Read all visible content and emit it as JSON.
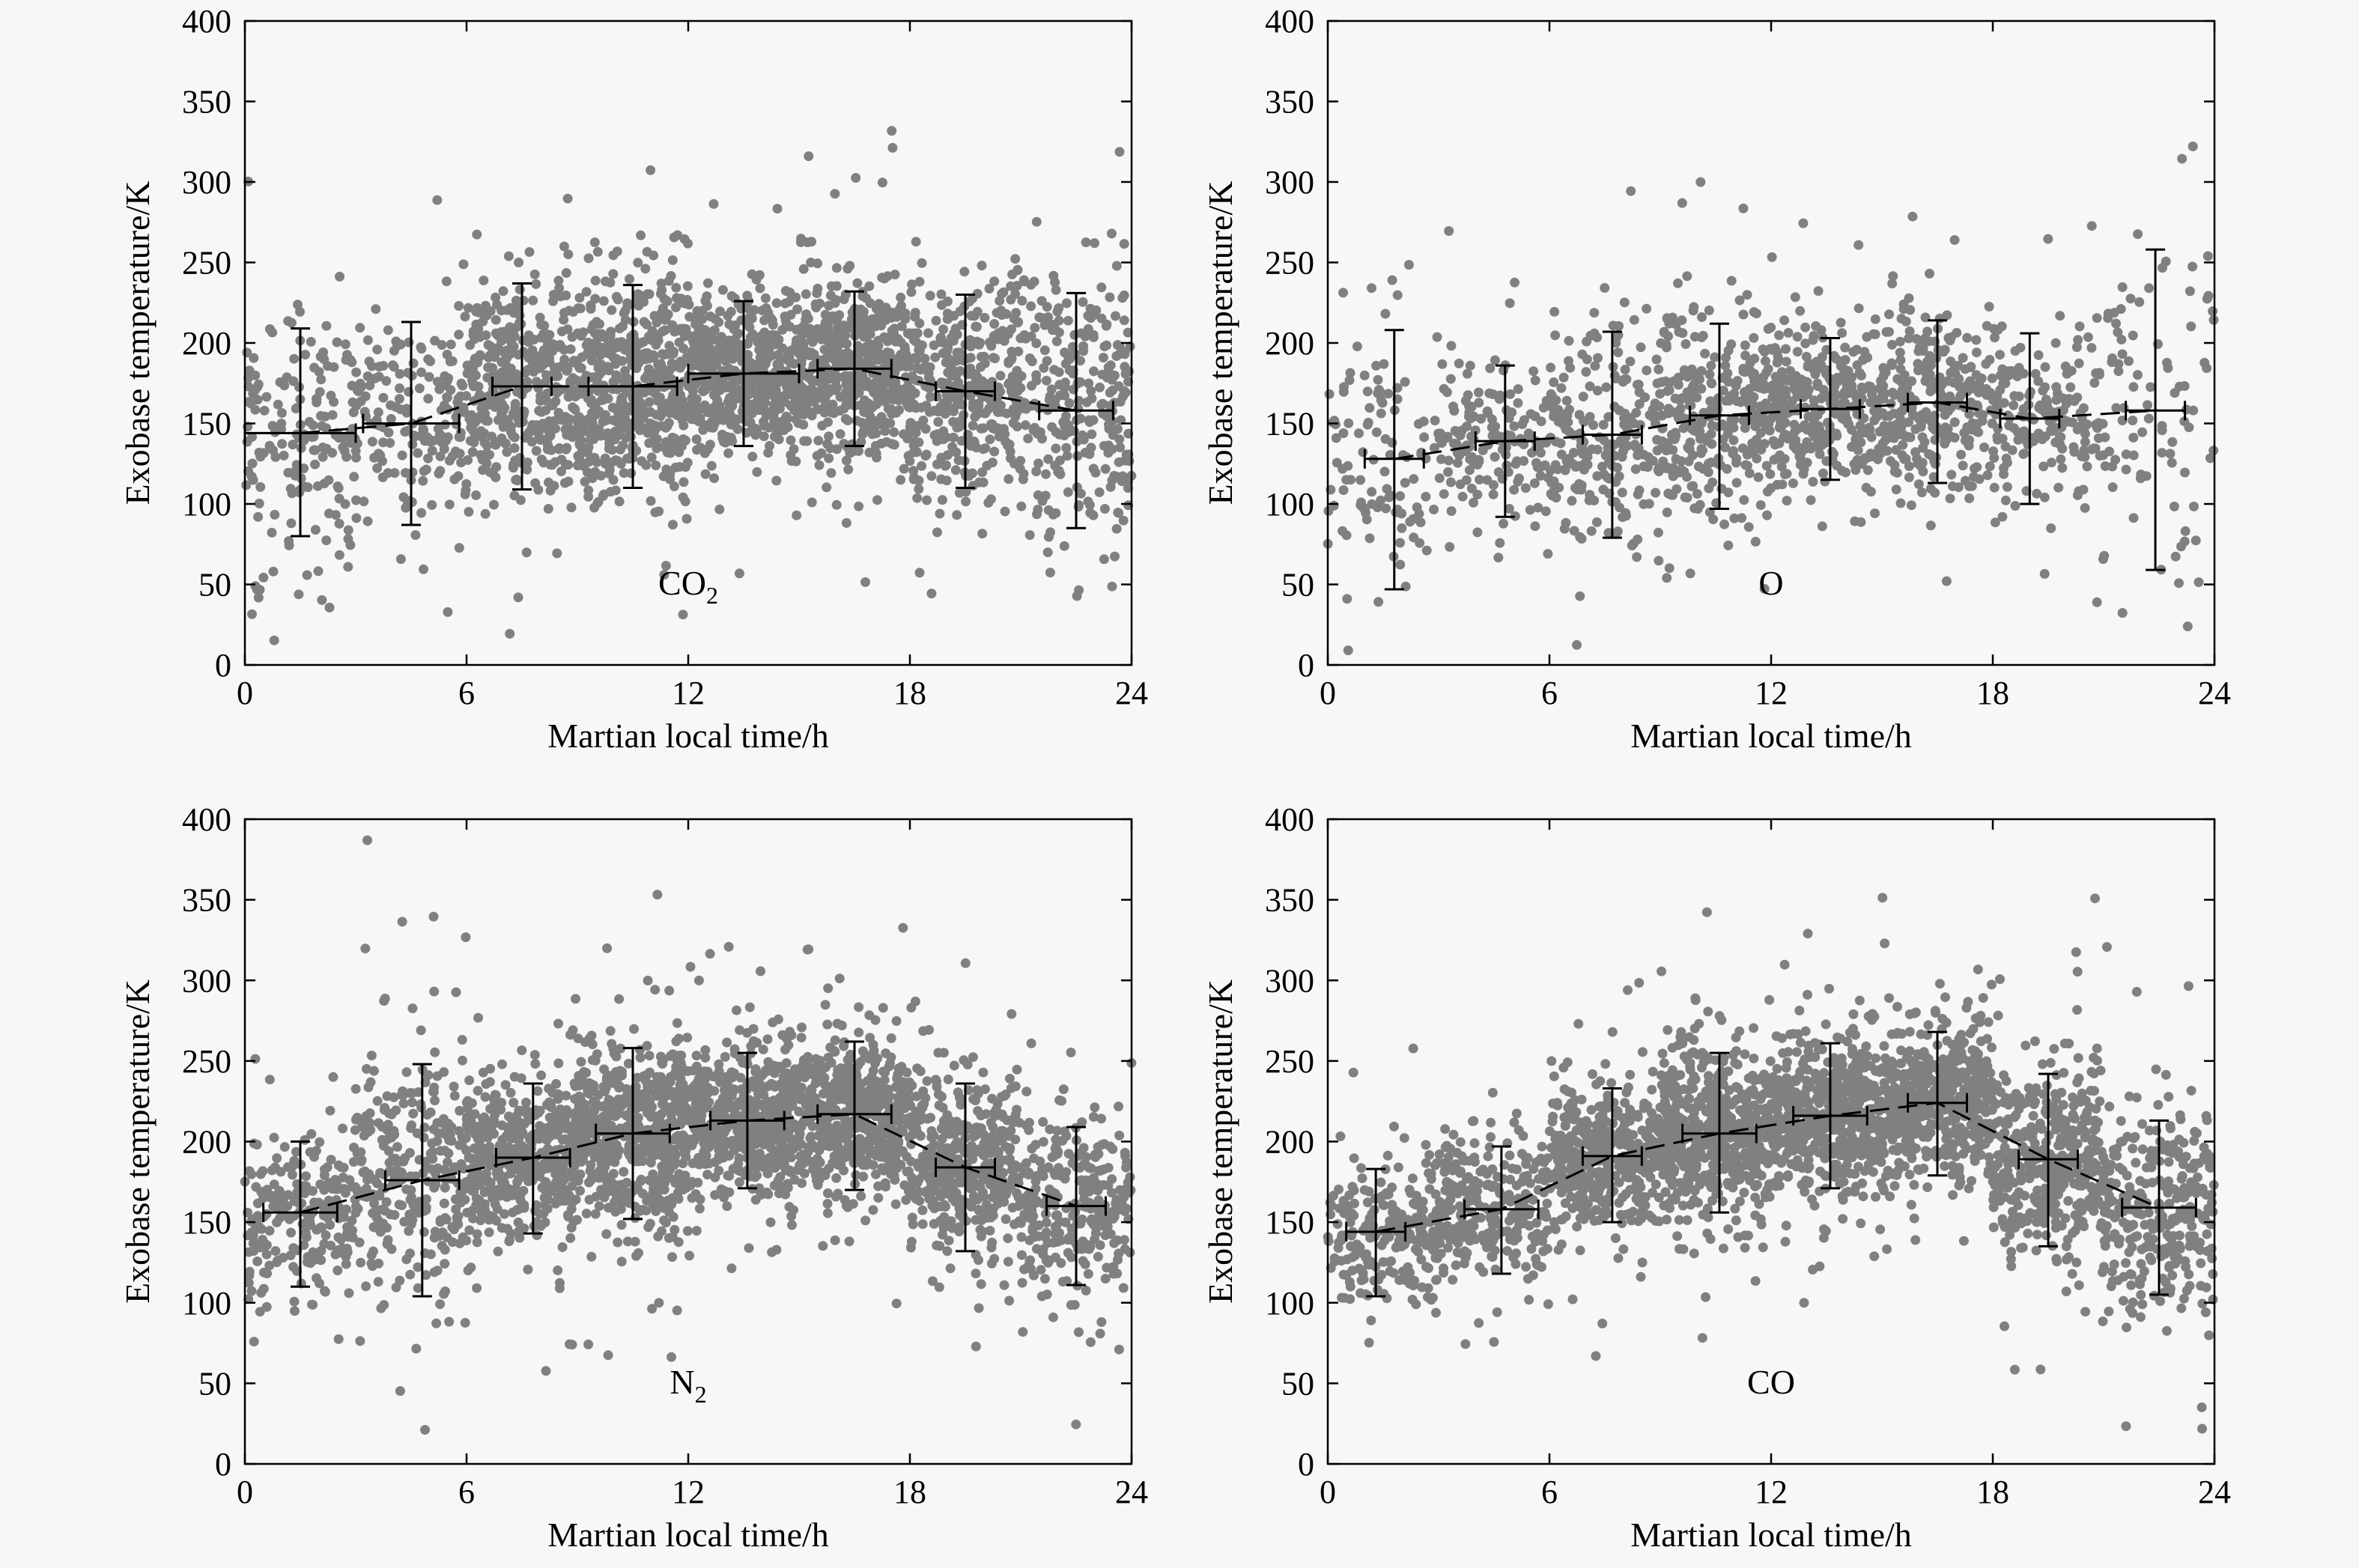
{
  "chart_data": [
    {
      "type": "scatter",
      "panel": "top-left",
      "annotation": {
        "text": "CO",
        "subscript": "2"
      },
      "xlabel": "Martian local time/h",
      "ylabel": "Exobase temperature/K",
      "xlim": [
        0,
        24
      ],
      "ylim": [
        0,
        400
      ],
      "xticks": [
        0,
        6,
        12,
        18,
        24
      ],
      "yticks": [
        0,
        50,
        100,
        150,
        200,
        250,
        300,
        350,
        400
      ],
      "point_color": "#808080",
      "scatter_cloud": {
        "centers": [
          [
            1.5,
            144
          ],
          [
            4.5,
            150
          ],
          [
            7.5,
            173
          ],
          [
            10.5,
            173
          ],
          [
            13.5,
            181
          ],
          [
            16.5,
            184
          ],
          [
            19.5,
            170
          ],
          [
            22.5,
            158
          ]
        ],
        "spreads": [
          [
            1.5,
            65
          ],
          [
            1.5,
            63
          ],
          [
            1.5,
            64
          ],
          [
            1.5,
            63
          ],
          [
            1.5,
            45
          ],
          [
            1.5,
            48
          ],
          [
            1.5,
            60
          ],
          [
            1.5,
            73
          ]
        ],
        "counts": [
          170,
          180,
          420,
          520,
          500,
          480,
          370,
          270
        ]
      },
      "binned_means": [
        {
          "x": 1.5,
          "y": 144,
          "x_err": 1.5,
          "y_low": 80,
          "y_high": 209
        },
        {
          "x": 4.5,
          "y": 150,
          "x_err": 1.3,
          "y_low": 87,
          "y_high": 213
        },
        {
          "x": 7.5,
          "y": 173,
          "x_err": 0.8,
          "y_low": 109,
          "y_high": 237
        },
        {
          "x": 10.5,
          "y": 173,
          "x_err": 1.2,
          "y_low": 110,
          "y_high": 236
        },
        {
          "x": 13.5,
          "y": 181,
          "x_err": 1.5,
          "y_low": 136,
          "y_high": 226
        },
        {
          "x": 16.5,
          "y": 184,
          "x_err": 1.0,
          "y_low": 136,
          "y_high": 232
        },
        {
          "x": 19.5,
          "y": 170,
          "x_err": 0.8,
          "y_low": 110,
          "y_high": 230
        },
        {
          "x": 22.5,
          "y": 158,
          "x_err": 1.0,
          "y_low": 85,
          "y_high": 231
        }
      ]
    },
    {
      "type": "scatter",
      "panel": "top-right",
      "annotation": {
        "text": "O",
        "subscript": ""
      },
      "xlabel": "Martian local time/h",
      "ylabel": "Exobase temperature/K",
      "xlim": [
        0,
        24
      ],
      "ylim": [
        0,
        400
      ],
      "xticks": [
        0,
        6,
        12,
        18,
        24
      ],
      "yticks": [
        0,
        50,
        100,
        150,
        200,
        250,
        300,
        350,
        400
      ],
      "point_color": "#808080",
      "scatter_cloud": {
        "centers": [
          [
            1.5,
            128
          ],
          [
            4.5,
            139
          ],
          [
            7.5,
            143
          ],
          [
            10.5,
            155
          ],
          [
            13.5,
            159
          ],
          [
            16.5,
            163
          ],
          [
            19.5,
            153
          ],
          [
            22.5,
            158
          ]
        ],
        "spreads": [
          [
            1.5,
            80
          ],
          [
            1.5,
            47
          ],
          [
            1.5,
            64
          ],
          [
            1.5,
            58
          ],
          [
            1.5,
            44
          ],
          [
            1.5,
            51
          ],
          [
            1.5,
            53
          ],
          [
            1.5,
            100
          ]
        ],
        "counts": [
          110,
          160,
          230,
          300,
          330,
          280,
          180,
          90
        ]
      },
      "binned_means": [
        {
          "x": 1.8,
          "y": 128,
          "x_err": 0.8,
          "y_low": 47,
          "y_high": 208
        },
        {
          "x": 4.8,
          "y": 139,
          "x_err": 0.8,
          "y_low": 92,
          "y_high": 186
        },
        {
          "x": 7.7,
          "y": 143,
          "x_err": 0.8,
          "y_low": 79,
          "y_high": 207
        },
        {
          "x": 10.6,
          "y": 155,
          "x_err": 0.8,
          "y_low": 97,
          "y_high": 212
        },
        {
          "x": 13.6,
          "y": 159,
          "x_err": 0.8,
          "y_low": 115,
          "y_high": 203
        },
        {
          "x": 16.5,
          "y": 163,
          "x_err": 0.8,
          "y_low": 113,
          "y_high": 214
        },
        {
          "x": 19.0,
          "y": 153,
          "x_err": 0.8,
          "y_low": 100,
          "y_high": 206
        },
        {
          "x": 22.4,
          "y": 158,
          "x_err": 0.8,
          "y_low": 59,
          "y_high": 258
        }
      ]
    },
    {
      "type": "scatter",
      "panel": "bottom-left",
      "annotation": {
        "text": "N",
        "subscript": "2"
      },
      "xlabel": "Martian local time/h",
      "ylabel": "Exobase temperature/K",
      "xlim": [
        0,
        24
      ],
      "ylim": [
        0,
        400
      ],
      "xticks": [
        0,
        6,
        12,
        18,
        24
      ],
      "yticks": [
        0,
        50,
        100,
        150,
        200,
        250,
        300,
        350,
        400
      ],
      "point_color": "#808080",
      "scatter_cloud": {
        "centers": [
          [
            1.5,
            156
          ],
          [
            4.5,
            176
          ],
          [
            7.5,
            190
          ],
          [
            10.5,
            205
          ],
          [
            13.5,
            213
          ],
          [
            16.5,
            217
          ],
          [
            19.5,
            184
          ],
          [
            22.5,
            160
          ]
        ],
        "spreads": [
          [
            1.5,
            45
          ],
          [
            1.5,
            72
          ],
          [
            1.5,
            47
          ],
          [
            1.5,
            53
          ],
          [
            1.5,
            43
          ],
          [
            1.5,
            46
          ],
          [
            1.5,
            52
          ],
          [
            1.5,
            49
          ]
        ],
        "counts": [
          230,
          290,
          450,
          560,
          540,
          500,
          420,
          300
        ]
      },
      "binned_means": [
        {
          "x": 1.5,
          "y": 156,
          "x_err": 1.0,
          "y_low": 110,
          "y_high": 200
        },
        {
          "x": 4.8,
          "y": 176,
          "x_err": 1.0,
          "y_low": 104,
          "y_high": 248
        },
        {
          "x": 7.8,
          "y": 190,
          "x_err": 1.0,
          "y_low": 143,
          "y_high": 236
        },
        {
          "x": 10.5,
          "y": 205,
          "x_err": 1.0,
          "y_low": 152,
          "y_high": 258
        },
        {
          "x": 13.6,
          "y": 213,
          "x_err": 1.0,
          "y_low": 171,
          "y_high": 255
        },
        {
          "x": 16.5,
          "y": 217,
          "x_err": 1.0,
          "y_low": 170,
          "y_high": 262
        },
        {
          "x": 19.5,
          "y": 184,
          "x_err": 0.8,
          "y_low": 132,
          "y_high": 236
        },
        {
          "x": 22.5,
          "y": 160,
          "x_err": 0.8,
          "y_low": 111,
          "y_high": 209
        }
      ]
    },
    {
      "type": "scatter",
      "panel": "bottom-right",
      "annotation": {
        "text": "CO",
        "subscript": ""
      },
      "xlabel": "Martian local time/h",
      "ylabel": "Exobase temperature/K",
      "xlim": [
        0,
        24
      ],
      "ylim": [
        0,
        400
      ],
      "xticks": [
        0,
        6,
        12,
        18,
        24
      ],
      "yticks": [
        0,
        50,
        100,
        150,
        200,
        250,
        300,
        350,
        400
      ],
      "point_color": "#808080",
      "scatter_cloud": {
        "centers": [
          [
            1.5,
            144
          ],
          [
            4.5,
            158
          ],
          [
            7.5,
            191
          ],
          [
            10.5,
            205
          ],
          [
            13.5,
            216
          ],
          [
            16.5,
            224
          ],
          [
            19.5,
            189
          ],
          [
            22.5,
            159
          ]
        ],
        "spreads": [
          [
            1.5,
            40
          ],
          [
            1.5,
            40
          ],
          [
            1.5,
            42
          ],
          [
            1.5,
            50
          ],
          [
            1.5,
            45
          ],
          [
            1.5,
            45
          ],
          [
            1.5,
            54
          ],
          [
            1.5,
            55
          ]
        ],
        "counts": [
          220,
          270,
          420,
          520,
          540,
          500,
          400,
          300
        ]
      },
      "binned_means": [
        {
          "x": 1.3,
          "y": 144,
          "x_err": 0.8,
          "y_low": 104,
          "y_high": 183
        },
        {
          "x": 4.7,
          "y": 158,
          "x_err": 1.0,
          "y_low": 118,
          "y_high": 197
        },
        {
          "x": 7.7,
          "y": 191,
          "x_err": 0.8,
          "y_low": 150,
          "y_high": 233
        },
        {
          "x": 10.6,
          "y": 205,
          "x_err": 1.0,
          "y_low": 156,
          "y_high": 255
        },
        {
          "x": 13.6,
          "y": 216,
          "x_err": 1.0,
          "y_low": 171,
          "y_high": 261
        },
        {
          "x": 16.5,
          "y": 224,
          "x_err": 0.8,
          "y_low": 179,
          "y_high": 268
        },
        {
          "x": 19.5,
          "y": 189,
          "x_err": 0.8,
          "y_low": 135,
          "y_high": 242
        },
        {
          "x": 22.5,
          "y": 159,
          "x_err": 1.0,
          "y_low": 105,
          "y_high": 213
        }
      ]
    }
  ]
}
